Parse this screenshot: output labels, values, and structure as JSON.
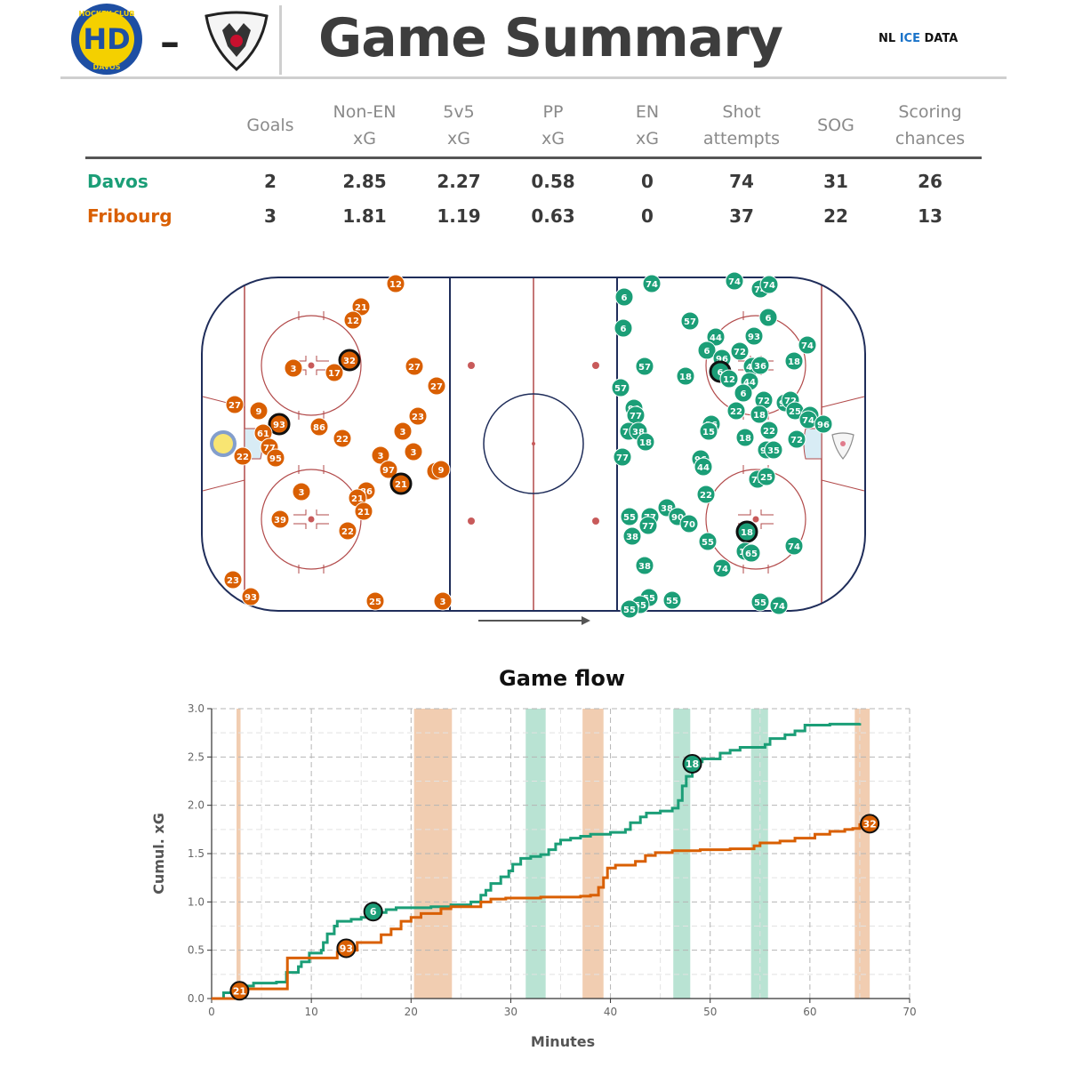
{
  "header": {
    "title": "Game Summary",
    "dash": "–",
    "brand_prefix": "NL ",
    "brand_accent": "ICE",
    "brand_suffix": " DATA",
    "home_logo_text": [
      "HOCKEY CLUB",
      "HD",
      "DAVOS"
    ]
  },
  "colors": {
    "davos": "#1b9e77",
    "fribourg": "#d95f02",
    "pp_davos": "#b9e3d3",
    "pp_fribourg": "#f1cdb1",
    "rink_red": "#b24a4a",
    "rink_blue": "#1f2d5a"
  },
  "table": {
    "headers": [
      [
        "Goals",
        ""
      ],
      [
        "Non-EN",
        "xG"
      ],
      [
        "5v5",
        "xG"
      ],
      [
        "PP",
        "xG"
      ],
      [
        "EN",
        "xG"
      ],
      [
        "Shot",
        "attempts"
      ],
      [
        "SOG",
        ""
      ],
      [
        "Scoring",
        "chances"
      ]
    ],
    "rows": [
      {
        "team": "Davos",
        "values": [
          "2",
          "2.85",
          "2.27",
          "0.58",
          "0",
          "74",
          "31",
          "26"
        ]
      },
      {
        "team": "Fribourg",
        "values": [
          "3",
          "1.81",
          "1.19",
          "0.63",
          "0",
          "37",
          "22",
          "13"
        ]
      }
    ]
  },
  "rink": {
    "fribourg_shots": [
      {
        "n": "12",
        "x": 445,
        "y": 319
      },
      {
        "n": "21",
        "x": 406,
        "y": 345
      },
      {
        "n": "12",
        "x": 397,
        "y": 360
      },
      {
        "n": "32",
        "x": 393,
        "y": 405,
        "goal": true
      },
      {
        "n": "3",
        "x": 330,
        "y": 414
      },
      {
        "n": "17",
        "x": 376,
        "y": 419
      },
      {
        "n": "27",
        "x": 466,
        "y": 412
      },
      {
        "n": "27",
        "x": 491,
        "y": 434
      },
      {
        "n": "27",
        "x": 264,
        "y": 455
      },
      {
        "n": "9",
        "x": 291,
        "y": 462
      },
      {
        "n": "93",
        "x": 314,
        "y": 477,
        "goal": true
      },
      {
        "n": "23",
        "x": 470,
        "y": 468
      },
      {
        "n": "86",
        "x": 359,
        "y": 480
      },
      {
        "n": "61",
        "x": 296,
        "y": 487
      },
      {
        "n": "3",
        "x": 453,
        "y": 485
      },
      {
        "n": "22",
        "x": 385,
        "y": 493
      },
      {
        "n": "77",
        "x": 303,
        "y": 503
      },
      {
        "n": "3",
        "x": 465,
        "y": 508
      },
      {
        "n": "22",
        "x": 273,
        "y": 513
      },
      {
        "n": "95",
        "x": 310,
        "y": 515
      },
      {
        "n": "3",
        "x": 428,
        "y": 512
      },
      {
        "n": "97",
        "x": 437,
        "y": 528
      },
      {
        "n": "3",
        "x": 490,
        "y": 530
      },
      {
        "n": "9",
        "x": 496,
        "y": 528
      },
      {
        "n": "21",
        "x": 451,
        "y": 544,
        "goal": true
      },
      {
        "n": "3",
        "x": 339,
        "y": 553
      },
      {
        "n": "86",
        "x": 412,
        "y": 552
      },
      {
        "n": "21",
        "x": 402,
        "y": 560
      },
      {
        "n": "21",
        "x": 409,
        "y": 575
      },
      {
        "n": "39",
        "x": 315,
        "y": 584
      },
      {
        "n": "22",
        "x": 391,
        "y": 597
      },
      {
        "n": "23",
        "x": 262,
        "y": 652
      },
      {
        "n": "93",
        "x": 282,
        "y": 671
      },
      {
        "n": "25",
        "x": 422,
        "y": 676
      },
      {
        "n": "3",
        "x": 498,
        "y": 676
      }
    ],
    "davos_shots": [
      {
        "n": "74",
        "x": 733,
        "y": 319
      },
      {
        "n": "74",
        "x": 826,
        "y": 316
      },
      {
        "n": "74",
        "x": 855,
        "y": 325
      },
      {
        "n": "74",
        "x": 865,
        "y": 320
      },
      {
        "n": "6",
        "x": 702,
        "y": 334
      },
      {
        "n": "6",
        "x": 864,
        "y": 357
      },
      {
        "n": "57",
        "x": 776,
        "y": 361
      },
      {
        "n": "6",
        "x": 701,
        "y": 369
      },
      {
        "n": "93",
        "x": 848,
        "y": 378
      },
      {
        "n": "44",
        "x": 805,
        "y": 379
      },
      {
        "n": "74",
        "x": 908,
        "y": 388
      },
      {
        "n": "72",
        "x": 832,
        "y": 395
      },
      {
        "n": "6",
        "x": 795,
        "y": 394
      },
      {
        "n": "96",
        "x": 812,
        "y": 403
      },
      {
        "n": "18",
        "x": 893,
        "y": 406
      },
      {
        "n": "57",
        "x": 725,
        "y": 412
      },
      {
        "n": "47",
        "x": 846,
        "y": 412
      },
      {
        "n": "36",
        "x": 855,
        "y": 411
      },
      {
        "n": "6",
        "x": 810,
        "y": 418,
        "goal": true
      },
      {
        "n": "18",
        "x": 771,
        "y": 423
      },
      {
        "n": "12",
        "x": 820,
        "y": 426
      },
      {
        "n": "44",
        "x": 843,
        "y": 429
      },
      {
        "n": "57",
        "x": 698,
        "y": 436
      },
      {
        "n": "6",
        "x": 836,
        "y": 442
      },
      {
        "n": "72",
        "x": 859,
        "y": 450
      },
      {
        "n": "93",
        "x": 883,
        "y": 453
      },
      {
        "n": "72",
        "x": 889,
        "y": 450
      },
      {
        "n": "90",
        "x": 713,
        "y": 459
      },
      {
        "n": "22",
        "x": 828,
        "y": 462
      },
      {
        "n": "25",
        "x": 894,
        "y": 462
      },
      {
        "n": "44",
        "x": 911,
        "y": 467
      },
      {
        "n": "18",
        "x": 854,
        "y": 466
      },
      {
        "n": "77",
        "x": 715,
        "y": 467
      },
      {
        "n": "74",
        "x": 909,
        "y": 472
      },
      {
        "n": "96",
        "x": 926,
        "y": 477
      },
      {
        "n": "36",
        "x": 800,
        "y": 477
      },
      {
        "n": "77",
        "x": 707,
        "y": 485
      },
      {
        "n": "38",
        "x": 718,
        "y": 485
      },
      {
        "n": "15",
        "x": 797,
        "y": 485
      },
      {
        "n": "22",
        "x": 865,
        "y": 484
      },
      {
        "n": "18",
        "x": 838,
        "y": 492
      },
      {
        "n": "72",
        "x": 896,
        "y": 494
      },
      {
        "n": "18",
        "x": 726,
        "y": 497
      },
      {
        "n": "93",
        "x": 862,
        "y": 506
      },
      {
        "n": "35",
        "x": 870,
        "y": 506
      },
      {
        "n": "77",
        "x": 700,
        "y": 514
      },
      {
        "n": "96",
        "x": 788,
        "y": 516
      },
      {
        "n": "44",
        "x": 791,
        "y": 525
      },
      {
        "n": "72",
        "x": 852,
        "y": 539
      },
      {
        "n": "25",
        "x": 862,
        "y": 536
      },
      {
        "n": "22",
        "x": 794,
        "y": 556
      },
      {
        "n": "38",
        "x": 750,
        "y": 571
      },
      {
        "n": "55",
        "x": 708,
        "y": 581
      },
      {
        "n": "77",
        "x": 731,
        "y": 581
      },
      {
        "n": "90",
        "x": 762,
        "y": 581
      },
      {
        "n": "77",
        "x": 729,
        "y": 591
      },
      {
        "n": "70",
        "x": 775,
        "y": 589
      },
      {
        "n": "18",
        "x": 840,
        "y": 598,
        "goal": true
      },
      {
        "n": "38",
        "x": 711,
        "y": 603
      },
      {
        "n": "55",
        "x": 796,
        "y": 609
      },
      {
        "n": "74",
        "x": 893,
        "y": 614
      },
      {
        "n": "18",
        "x": 838,
        "y": 620
      },
      {
        "n": "65",
        "x": 845,
        "y": 622
      },
      {
        "n": "38",
        "x": 725,
        "y": 636
      },
      {
        "n": "74",
        "x": 812,
        "y": 639
      },
      {
        "n": "55",
        "x": 730,
        "y": 672
      },
      {
        "n": "55",
        "x": 756,
        "y": 675
      },
      {
        "n": "55",
        "x": 855,
        "y": 677
      },
      {
        "n": "74",
        "x": 876,
        "y": 681
      },
      {
        "n": "55",
        "x": 720,
        "y": 680
      },
      {
        "n": "55",
        "x": 708,
        "y": 685
      }
    ]
  },
  "chart_data": {
    "type": "line",
    "title": "Game flow",
    "xlabel": "Minutes",
    "ylabel": "Cumul. xG",
    "xlim": [
      0,
      70
    ],
    "ylim": [
      0,
      3.0
    ],
    "x_ticks": [
      "0",
      "10",
      "20",
      "30",
      "40",
      "50",
      "60",
      "70"
    ],
    "y_ticks": [
      "0.0",
      "0.5",
      "1.0",
      "1.5",
      "2.0",
      "2.5",
      "3.0"
    ],
    "grid": true,
    "series": [
      {
        "name": "Davos",
        "color": "#1b9e77",
        "points": [
          [
            1.0,
            0.0
          ],
          [
            1.2,
            0.06
          ],
          [
            2.8,
            0.08
          ],
          [
            3.6,
            0.13
          ],
          [
            4.2,
            0.16
          ],
          [
            6.5,
            0.17
          ],
          [
            7.5,
            0.27
          ],
          [
            8.7,
            0.33
          ],
          [
            9.0,
            0.38
          ],
          [
            9.8,
            0.47
          ],
          [
            11.0,
            0.5
          ],
          [
            11.2,
            0.58
          ],
          [
            11.6,
            0.67
          ],
          [
            12.3,
            0.75
          ],
          [
            12.6,
            0.8
          ],
          [
            14.0,
            0.82
          ],
          [
            15.0,
            0.84
          ],
          [
            15.6,
            0.86
          ],
          [
            16.2,
            0.89
          ],
          [
            17.5,
            0.92
          ],
          [
            18.5,
            0.94
          ],
          [
            22.0,
            0.95
          ],
          [
            24.0,
            0.97
          ],
          [
            26.0,
            1.0
          ],
          [
            27.0,
            1.07
          ],
          [
            27.5,
            1.12
          ],
          [
            28.0,
            1.19
          ],
          [
            29.0,
            1.26
          ],
          [
            29.8,
            1.32
          ],
          [
            30.2,
            1.39
          ],
          [
            31.0,
            1.45
          ],
          [
            32.0,
            1.47
          ],
          [
            33.0,
            1.49
          ],
          [
            33.8,
            1.54
          ],
          [
            34.5,
            1.6
          ],
          [
            35.0,
            1.64
          ],
          [
            36.0,
            1.66
          ],
          [
            37.0,
            1.68
          ],
          [
            38.0,
            1.7
          ],
          [
            40.0,
            1.72
          ],
          [
            41.5,
            1.75
          ],
          [
            42.0,
            1.82
          ],
          [
            43.0,
            1.88
          ],
          [
            43.6,
            1.92
          ],
          [
            45.0,
            1.94
          ],
          [
            46.2,
            1.97
          ],
          [
            46.8,
            2.05
          ],
          [
            47.2,
            2.2
          ],
          [
            47.6,
            2.3
          ],
          [
            48.2,
            2.42
          ],
          [
            48.6,
            2.45
          ],
          [
            49.2,
            2.48
          ],
          [
            51.0,
            2.54
          ],
          [
            52.0,
            2.57
          ],
          [
            53.0,
            2.6
          ],
          [
            55.5,
            2.63
          ],
          [
            56.0,
            2.69
          ],
          [
            57.5,
            2.73
          ],
          [
            58.5,
            2.77
          ],
          [
            59.5,
            2.83
          ],
          [
            62.0,
            2.84
          ],
          [
            65.0,
            2.85
          ]
        ]
      },
      {
        "name": "Fribourg",
        "color": "#d95f02",
        "points": [
          [
            0.0,
            0.0
          ],
          [
            2.5,
            0.01
          ],
          [
            2.8,
            0.1
          ],
          [
            3.6,
            0.1
          ],
          [
            7.4,
            0.1
          ],
          [
            7.6,
            0.42
          ],
          [
            10.0,
            0.42
          ],
          [
            12.6,
            0.48
          ],
          [
            13.5,
            0.5
          ],
          [
            14.6,
            0.58
          ],
          [
            15.8,
            0.58
          ],
          [
            17.0,
            0.66
          ],
          [
            18.0,
            0.72
          ],
          [
            19.0,
            0.8
          ],
          [
            20.0,
            0.84
          ],
          [
            21.0,
            0.88
          ],
          [
            23.0,
            0.93
          ],
          [
            24.0,
            0.95
          ],
          [
            26.0,
            0.95
          ],
          [
            27.0,
            1.0
          ],
          [
            28.0,
            1.03
          ],
          [
            29.5,
            1.04
          ],
          [
            33.0,
            1.05
          ],
          [
            37.0,
            1.06
          ],
          [
            38.0,
            1.07
          ],
          [
            38.8,
            1.15
          ],
          [
            39.3,
            1.25
          ],
          [
            39.7,
            1.35
          ],
          [
            40.5,
            1.38
          ],
          [
            42.5,
            1.42
          ],
          [
            43.5,
            1.48
          ],
          [
            44.5,
            1.51
          ],
          [
            46.2,
            1.53
          ],
          [
            49.0,
            1.54
          ],
          [
            52.0,
            1.55
          ],
          [
            54.4,
            1.58
          ],
          [
            55.0,
            1.61
          ],
          [
            57.0,
            1.63
          ],
          [
            58.5,
            1.66
          ],
          [
            60.5,
            1.7
          ],
          [
            62.0,
            1.73
          ],
          [
            63.5,
            1.75
          ],
          [
            64.3,
            1.76
          ],
          [
            65.0,
            1.8
          ],
          [
            66.0,
            1.82
          ]
        ]
      }
    ],
    "pp_bands": [
      {
        "team": "Fribourg",
        "start": 2.5,
        "end": 2.9
      },
      {
        "team": "Fribourg",
        "start": 20.3,
        "end": 24.1
      },
      {
        "team": "Davos",
        "start": 31.5,
        "end": 33.5
      },
      {
        "team": "Fribourg",
        "start": 37.2,
        "end": 39.3
      },
      {
        "team": "Davos",
        "start": 46.3,
        "end": 48.0
      },
      {
        "team": "Davos",
        "start": 54.1,
        "end": 55.8
      },
      {
        "team": "Fribourg",
        "start": 64.5,
        "end": 66.0
      }
    ],
    "goal_markers": [
      {
        "team": "Fribourg",
        "label": "21",
        "x": 2.8,
        "y": 0.08
      },
      {
        "team": "Fribourg",
        "label": "93",
        "x": 13.5,
        "y": 0.52
      },
      {
        "team": "Davos",
        "label": "6",
        "x": 16.2,
        "y": 0.9
      },
      {
        "team": "Davos",
        "label": "18",
        "x": 48.2,
        "y": 2.43
      },
      {
        "team": "Fribourg",
        "label": "32",
        "x": 66.0,
        "y": 1.81
      }
    ]
  }
}
